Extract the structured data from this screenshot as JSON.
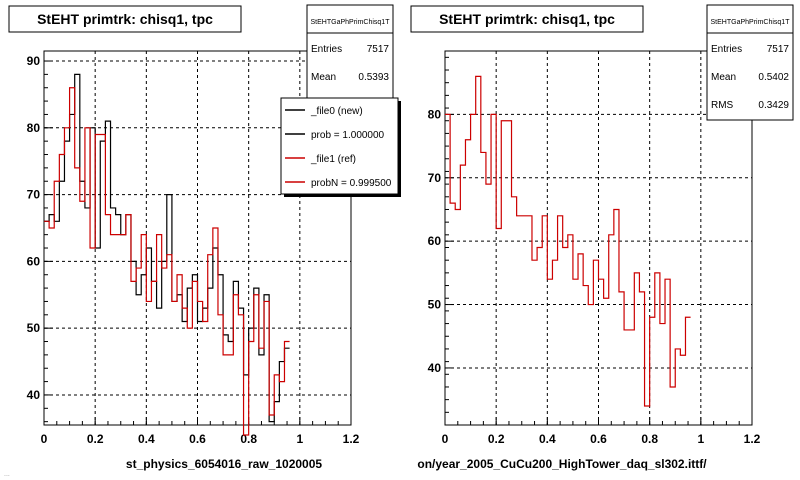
{
  "chart_data": [
    {
      "type": "histogram",
      "title": "StEHT primtrk: chisq1, tpc",
      "xlabel": "st_physics_6054016_raw_1020005",
      "xlim": [
        0,
        1.2
      ],
      "ylim": [
        35.5,
        91.5
      ],
      "xticks": [
        "0",
        "0.2",
        "0.4",
        "0.6",
        "0.8",
        "1",
        "1.2"
      ],
      "yticks": [
        "40",
        "50",
        "60",
        "70",
        "80",
        "90"
      ],
      "grid": true,
      "stats": {
        "header": "StEHTGaPhPrimChisq1T",
        "rows": [
          {
            "label": "Entries",
            "value": "7517"
          },
          {
            "label": "Mean",
            "value": "0.5393"
          }
        ]
      },
      "legend": {
        "placement": "top-right",
        "entries": [
          {
            "label": "_file0 (new)",
            "color": "#000000"
          },
          {
            "label": "prob = 1.000000",
            "color": "#000000"
          },
          {
            "label": "_file1 (ref)",
            "color": "#cc0000"
          },
          {
            "label": "probN = 0.999500",
            "color": "#cc0000"
          }
        ]
      },
      "bin_width": 0.02,
      "series": [
        {
          "name": "_file0 (new)",
          "color": "#000000",
          "values": [
            66,
            67,
            66,
            72,
            78,
            82,
            88,
            72,
            68,
            80,
            62,
            78,
            81,
            68,
            67,
            64,
            67,
            60,
            55,
            58,
            62,
            57,
            53,
            60,
            70,
            54,
            55,
            51,
            56,
            58,
            51,
            53,
            56,
            62,
            58,
            49,
            48,
            57,
            53,
            43,
            50,
            56,
            46,
            55,
            36,
            39,
            45,
            47
          ]
        },
        {
          "name": "_file1 (ref)",
          "color": "#cc0000",
          "values": [
            66,
            65,
            72,
            76,
            80,
            86,
            74,
            69,
            80,
            62,
            79,
            79,
            67,
            64,
            64,
            64,
            67,
            57,
            59,
            64,
            54,
            57,
            64,
            59,
            61,
            54,
            58,
            53,
            50,
            57,
            54,
            51,
            61,
            65,
            52,
            46,
            46,
            55,
            52,
            34,
            48,
            55,
            47,
            54,
            37,
            43,
            42,
            48
          ]
        }
      ]
    },
    {
      "type": "histogram",
      "title": "StEHT primtrk: chisq1, tpc",
      "xlabel": "on/year_2005_CuCu200_HighTower_daq_sl302.ittf/",
      "xlim": [
        0,
        1.2
      ],
      "ylim": [
        31,
        90
      ],
      "xticks": [
        "0",
        "0.2",
        "0.4",
        "0.6",
        "0.8",
        "1",
        "1.2"
      ],
      "yticks": [
        "40",
        "50",
        "60",
        "70",
        "80"
      ],
      "grid": true,
      "stats": {
        "header": "StEHTGaPhPrimChisq1T",
        "rows": [
          {
            "label": "Entries",
            "value": "7517"
          },
          {
            "label": "Mean",
            "value": "0.5402"
          },
          {
            "label": "RMS",
            "value": "0.3429"
          }
        ]
      },
      "bin_width": 0.02,
      "series": [
        {
          "name": "",
          "color": "#cc0000",
          "values": [
            80,
            66,
            65,
            72,
            76,
            80,
            86,
            74,
            69,
            80,
            62,
            79,
            79,
            67,
            64,
            64,
            64,
            57,
            59,
            64,
            54,
            57,
            64,
            59,
            61,
            54,
            58,
            53,
            50,
            57,
            54,
            51,
            61,
            65,
            52,
            46,
            46,
            55,
            52,
            34,
            48,
            55,
            47,
            54,
            37,
            43,
            42,
            48
          ]
        }
      ]
    }
  ],
  "footer_text": "..."
}
